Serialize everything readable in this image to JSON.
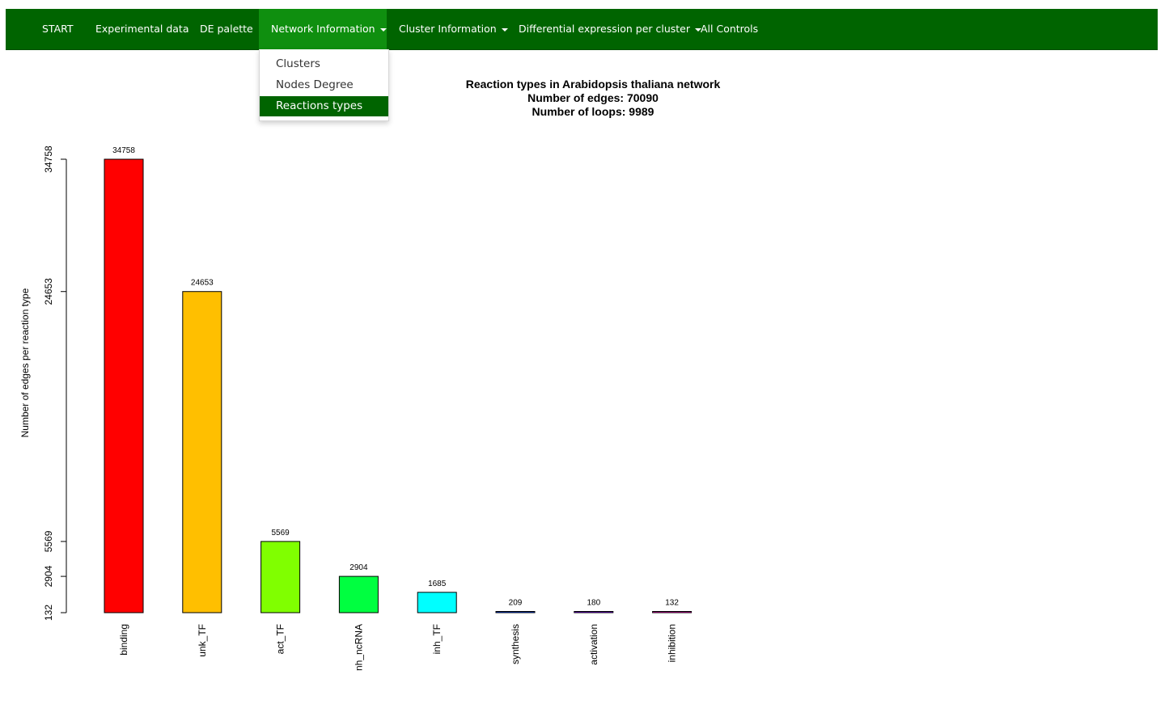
{
  "navbar": {
    "items": [
      {
        "label": "START",
        "dropdown": false
      },
      {
        "label": "Experimental data",
        "dropdown": false
      },
      {
        "label": "DE palette",
        "dropdown": false
      },
      {
        "label": "Network Information",
        "dropdown": true,
        "active": true
      },
      {
        "label": "Cluster Information",
        "dropdown": true
      },
      {
        "label": "Differential expression per cluster",
        "dropdown": true
      },
      {
        "label": "All Controls",
        "dropdown": false
      }
    ],
    "background": "#006400",
    "active_background": "#0f8f0f"
  },
  "network_menu": {
    "items": [
      "Clusters",
      "Nodes Degree",
      "Reactions types"
    ],
    "selected": "Reactions types"
  },
  "chart_data": {
    "type": "bar",
    "title_lines": [
      "Reaction types in Arabidopsis thaliana network",
      "Number of edges: 70090",
      "Number of loops: 9989"
    ],
    "ylabel": "Number of edges per reaction type",
    "xlabel": "",
    "categories": [
      "binding",
      "unk_TF",
      "act_TF",
      "nh_ncRNA",
      "inh_TF",
      "synthesis",
      "activation",
      "inhibition"
    ],
    "values": [
      34758,
      24653,
      5569,
      2904,
      1685,
      209,
      180,
      132
    ],
    "data_labels": [
      "34758",
      "24653",
      "5569",
      "2904",
      "1685",
      "209",
      "180",
      "132"
    ],
    "colors": [
      "#ff0000",
      "#ffbf00",
      "#80ff00",
      "#00ff40",
      "#00ffff",
      "#0040ff",
      "#8000ff",
      "#ff00bf"
    ],
    "yticks": [
      132,
      2904,
      5569,
      24653,
      34758
    ],
    "ytick_labels": [
      "132",
      "2904",
      "5569",
      "24653",
      "34758"
    ],
    "ylim": [
      132,
      34758
    ],
    "grid": false,
    "legend": false
  }
}
